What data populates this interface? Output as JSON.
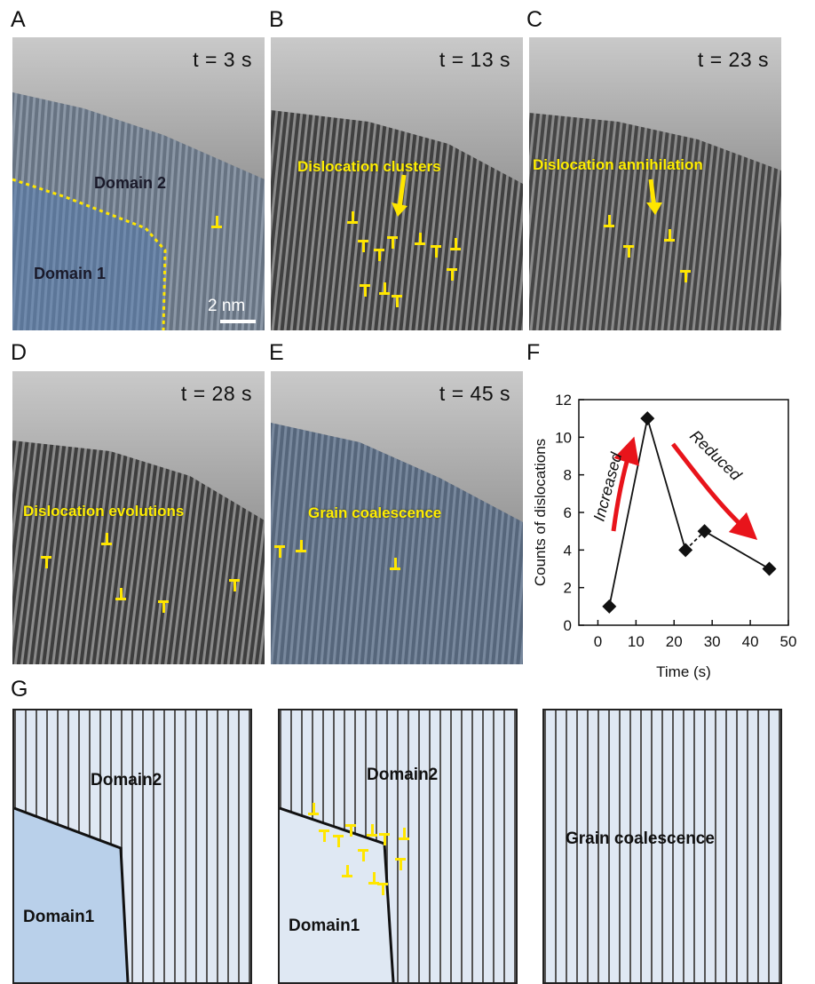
{
  "panel_labels": {
    "a": "A",
    "b": "B",
    "c": "C",
    "d": "D",
    "e": "E",
    "f": "F",
    "g": "G"
  },
  "times": {
    "a": "t = 3 s",
    "b": "t = 13 s",
    "c": "t = 23 s",
    "d": "t = 28 s",
    "e": "t = 45 s"
  },
  "annotations": {
    "domain2": "Domain 2",
    "domain1": "Domain 1",
    "scale": "2 nm",
    "clusters": "Dislocation clusters",
    "annihilation": "Dislocation annihilation",
    "evolutions": "Dislocation evolutions",
    "coalescence": "Grain coalescence"
  },
  "schematic": {
    "left_domain2": "Domain2",
    "left_domain1": "Domain1",
    "mid_domain2": "Domain2",
    "mid_domain1": "Domain1",
    "right_label": "Grain coalescence"
  },
  "colors": {
    "annotation": "#ffee00",
    "domain1_tint": "#5f86b8",
    "domain2_tint": "#8eaed6",
    "arrow": "#e8141b",
    "schematic_bg": "#dfe8f3",
    "schematic_domain1": "#b9d0ea"
  },
  "chart_data": {
    "type": "line",
    "x": [
      3,
      13,
      23,
      28,
      45
    ],
    "y": [
      1,
      11,
      4,
      5,
      3
    ],
    "xlabel": "Time (s)",
    "ylabel": "Counts of dislocations",
    "xlim": [
      -5,
      50
    ],
    "ylim": [
      0,
      12
    ],
    "xticks": [
      0,
      10,
      20,
      30,
      40,
      50
    ],
    "yticks": [
      0,
      2,
      4,
      6,
      8,
      10,
      12
    ],
    "annotations": [
      "Increased",
      "Reduced"
    ],
    "marker": "diamond",
    "dashed_segment": [
      2,
      3
    ]
  }
}
